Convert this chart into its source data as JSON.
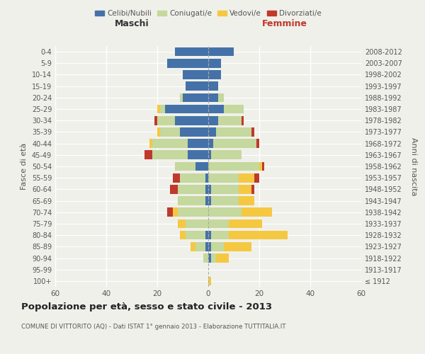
{
  "age_groups": [
    "100+",
    "95-99",
    "90-94",
    "85-89",
    "80-84",
    "75-79",
    "70-74",
    "65-69",
    "60-64",
    "55-59",
    "50-54",
    "45-49",
    "40-44",
    "35-39",
    "30-34",
    "25-29",
    "20-24",
    "15-19",
    "10-14",
    "5-9",
    "0-4"
  ],
  "birth_years": [
    "≤ 1912",
    "1913-1917",
    "1918-1922",
    "1923-1927",
    "1928-1932",
    "1933-1937",
    "1938-1942",
    "1943-1947",
    "1948-1952",
    "1953-1957",
    "1958-1962",
    "1963-1967",
    "1968-1972",
    "1973-1977",
    "1978-1982",
    "1983-1987",
    "1988-1992",
    "1993-1997",
    "1998-2002",
    "2003-2007",
    "2008-2012"
  ],
  "males": {
    "celibi": [
      0,
      0,
      0,
      1,
      1,
      0,
      0,
      1,
      1,
      1,
      5,
      8,
      8,
      11,
      13,
      17,
      10,
      9,
      10,
      16,
      13
    ],
    "coniugati": [
      0,
      0,
      2,
      4,
      8,
      9,
      12,
      11,
      11,
      10,
      8,
      14,
      14,
      8,
      7,
      2,
      1,
      0,
      0,
      0,
      0
    ],
    "vedovi": [
      0,
      0,
      0,
      2,
      2,
      3,
      2,
      0,
      0,
      0,
      0,
      0,
      1,
      1,
      0,
      1,
      0,
      0,
      0,
      0,
      0
    ],
    "divorziati": [
      0,
      0,
      0,
      0,
      0,
      0,
      2,
      0,
      3,
      3,
      0,
      3,
      0,
      0,
      1,
      0,
      0,
      0,
      0,
      0,
      0
    ]
  },
  "females": {
    "nubili": [
      0,
      0,
      1,
      1,
      1,
      0,
      0,
      1,
      1,
      0,
      0,
      1,
      2,
      3,
      4,
      6,
      4,
      4,
      5,
      5,
      10
    ],
    "coniugate": [
      0,
      0,
      2,
      5,
      7,
      8,
      13,
      11,
      11,
      12,
      20,
      12,
      17,
      14,
      9,
      8,
      2,
      0,
      0,
      0,
      0
    ],
    "vedove": [
      1,
      0,
      5,
      11,
      23,
      13,
      12,
      6,
      5,
      6,
      1,
      0,
      0,
      0,
      0,
      0,
      0,
      0,
      0,
      0,
      0
    ],
    "divorziate": [
      0,
      0,
      0,
      0,
      0,
      0,
      0,
      0,
      1,
      2,
      1,
      0,
      1,
      1,
      1,
      0,
      0,
      0,
      0,
      0,
      0
    ]
  },
  "colors": {
    "celibi": "#4472a8",
    "coniugati": "#c5d89d",
    "vedovi": "#f5c842",
    "divorziati": "#c0392b"
  },
  "title": "Popolazione per età, sesso e stato civile - 2013",
  "subtitle": "COMUNE DI VITTORITO (AQ) - Dati ISTAT 1° gennaio 2013 - Elaborazione TUTTITALIA.IT",
  "xlabel_maschi": "Maschi",
  "xlabel_femmine": "Femmine",
  "ylabel_left": "Fasce di età",
  "ylabel_right": "Anni di nascita",
  "xlim": 60,
  "legend_labels": [
    "Celibi/Nubili",
    "Coniugati/e",
    "Vedovi/e",
    "Divorziati/e"
  ],
  "bg_color": "#f0f0eb"
}
